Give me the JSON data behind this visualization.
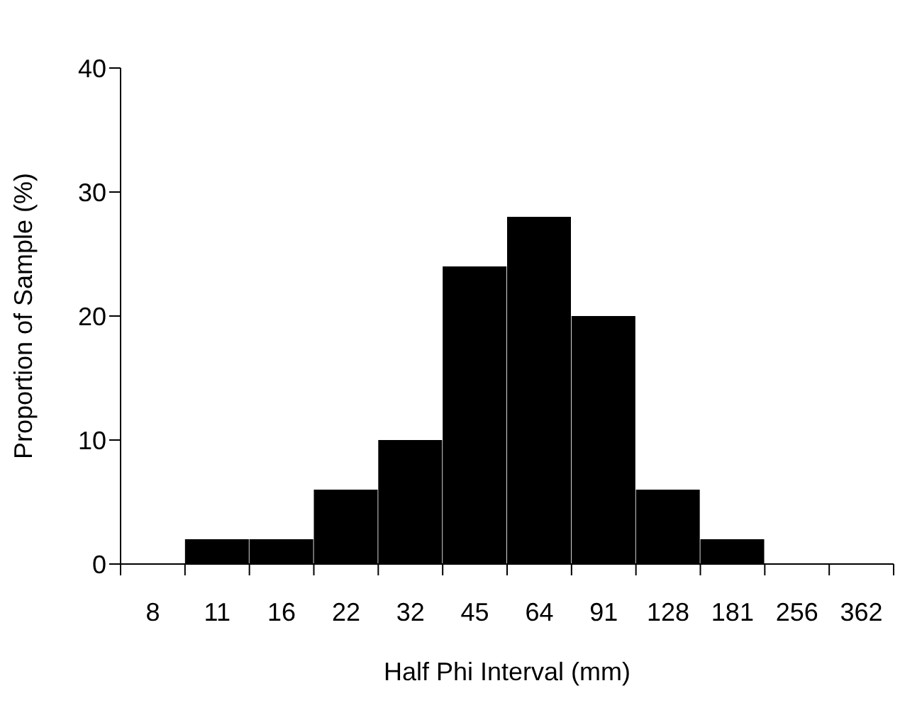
{
  "chart_data": {
    "type": "bar",
    "xlabel": "Half Phi Interval (mm)",
    "ylabel": "Proportion of Sample (%)",
    "categories": [
      "8",
      "11",
      "16",
      "22",
      "32",
      "45",
      "64",
      "91",
      "128",
      "181",
      "256",
      "362"
    ],
    "values": [
      0,
      2,
      2,
      6,
      10,
      24,
      28,
      20,
      6,
      2,
      0,
      0
    ],
    "color": "#000000",
    "ylim": [
      0,
      40
    ],
    "yticks": [
      0,
      10,
      20,
      30,
      40
    ],
    "grid": false,
    "legend": false
  }
}
